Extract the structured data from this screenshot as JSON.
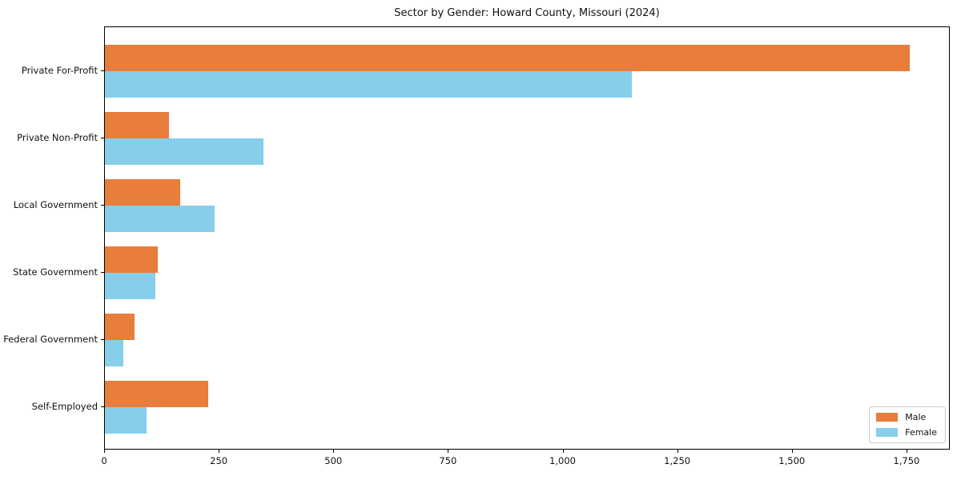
{
  "chart_data": {
    "type": "bar",
    "orientation": "horizontal",
    "title": "Sector by Gender: Howard County, Missouri (2024)",
    "xlabel": "",
    "ylabel": "",
    "categories": [
      "Private For-Profit",
      "Private Non-Profit",
      "Local Government",
      "State Government",
      "Federal Government",
      "Self-Employed"
    ],
    "series": [
      {
        "name": "Male",
        "color": "#E87D3C",
        "values": [
          1755,
          140,
          165,
          115,
          65,
          225
        ]
      },
      {
        "name": "Female",
        "color": "#87CEEB",
        "values": [
          1150,
          345,
          240,
          110,
          40,
          90
        ]
      }
    ],
    "xlim": [
      0,
      1841
    ],
    "x_ticks": [
      0,
      250,
      500,
      750,
      1000,
      1250,
      1500,
      1750
    ],
    "x_tick_labels": [
      "0",
      "250",
      "500",
      "750",
      "1,000",
      "1,250",
      "1,500",
      "1,750"
    ],
    "grid": false,
    "legend": {
      "position": "lower right",
      "entries": [
        "Male",
        "Female"
      ]
    }
  }
}
